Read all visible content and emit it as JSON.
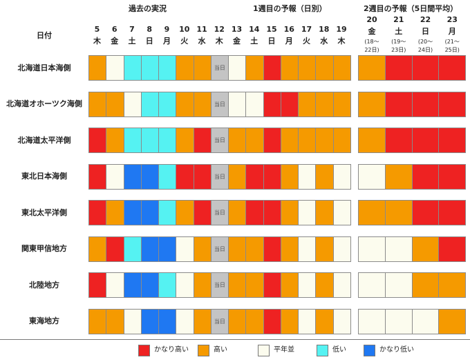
{
  "chart_data": {
    "type": "heatmap",
    "title_past": "過去の実況",
    "title_week1": "1週目の予報（日別）",
    "title_week2": "2週目の予報（5日間平均）",
    "region_header": "日付",
    "today_label": "当日",
    "days": [
      {
        "d": "5",
        "w": "木"
      },
      {
        "d": "6",
        "w": "金"
      },
      {
        "d": "7",
        "w": "土"
      },
      {
        "d": "8",
        "w": "日"
      },
      {
        "d": "9",
        "w": "月"
      },
      {
        "d": "10",
        "w": "火"
      },
      {
        "d": "11",
        "w": "水"
      },
      {
        "d": "12",
        "w": "木"
      },
      {
        "d": "13",
        "w": "金"
      },
      {
        "d": "14",
        "w": "土"
      },
      {
        "d": "15",
        "w": "日"
      },
      {
        "d": "16",
        "w": "月"
      },
      {
        "d": "17",
        "w": "火"
      },
      {
        "d": "18",
        "w": "水"
      },
      {
        "d": "19",
        "w": "木"
      }
    ],
    "week2": [
      {
        "d": "20",
        "w": "金",
        "r1": "(18～",
        "r2": "22日)"
      },
      {
        "d": "21",
        "w": "土",
        "r1": "(19～",
        "r2": "23日)"
      },
      {
        "d": "22",
        "w": "日",
        "r1": "(20～",
        "r2": "24日)"
      },
      {
        "d": "23",
        "w": "月",
        "r1": "(21～",
        "r2": "25日)"
      }
    ],
    "categories": [
      {
        "key": "vh",
        "label": "かなり高い",
        "color": "#ee2222"
      },
      {
        "key": "h",
        "label": "高い",
        "color": "#f59a00"
      },
      {
        "key": "n",
        "label": "平年並",
        "color": "#fcfcee"
      },
      {
        "key": "l",
        "label": "低い",
        "color": "#55f2f2"
      },
      {
        "key": "vl",
        "label": "かなり低い",
        "color": "#1f78f2"
      }
    ],
    "rows": [
      {
        "region": "北海道日本海側",
        "daily": [
          "h",
          "n",
          "l",
          "l",
          "l",
          "h",
          "h",
          "today",
          "n",
          "h",
          "vh",
          "h",
          "h",
          "h",
          "h"
        ],
        "week2": [
          "h",
          "vh",
          "vh",
          "vh"
        ]
      },
      {
        "region": "北海道オホーツク海側",
        "daily": [
          "h",
          "h",
          "n",
          "l",
          "l",
          "h",
          "h",
          "today",
          "n",
          "n",
          "vh",
          "vh",
          "h",
          "h",
          "h"
        ],
        "week2": [
          "h",
          "vh",
          "vh",
          "vh"
        ]
      },
      {
        "region": "北海道太平洋側",
        "daily": [
          "vh",
          "h",
          "l",
          "l",
          "l",
          "h",
          "vh",
          "today",
          "h",
          "h",
          "vh",
          "h",
          "h",
          "h",
          "h"
        ],
        "week2": [
          "h",
          "vh",
          "vh",
          "vh"
        ]
      },
      {
        "region": "東北日本海側",
        "daily": [
          "vh",
          "n",
          "vl",
          "vl",
          "l",
          "vh",
          "vh",
          "today",
          "h",
          "vh",
          "vh",
          "h",
          "n",
          "h",
          "n"
        ],
        "week2": [
          "n",
          "h",
          "vh",
          "vh"
        ]
      },
      {
        "region": "東北太平洋側",
        "daily": [
          "vh",
          "h",
          "vl",
          "vl",
          "l",
          "h",
          "vh",
          "today",
          "h",
          "vh",
          "vh",
          "h",
          "n",
          "h",
          "n"
        ],
        "week2": [
          "h",
          "h",
          "vh",
          "vh"
        ]
      },
      {
        "region": "関東甲信地方",
        "daily": [
          "h",
          "vh",
          "l",
          "vl",
          "vl",
          "n",
          "h",
          "today",
          "h",
          "h",
          "vh",
          "h",
          "n",
          "h",
          "n"
        ],
        "week2": [
          "n",
          "n",
          "h",
          "vh"
        ]
      },
      {
        "region": "北陸地方",
        "daily": [
          "vh",
          "n",
          "vl",
          "vl",
          "l",
          "n",
          "h",
          "today",
          "h",
          "h",
          "vh",
          "h",
          "n",
          "h",
          "n"
        ],
        "week2": [
          "n",
          "n",
          "h",
          "h"
        ]
      },
      {
        "region": "東海地方",
        "daily": [
          "h",
          "h",
          "n",
          "vl",
          "vl",
          "n",
          "h",
          "today",
          "h",
          "h",
          "vh",
          "h",
          "n",
          "h",
          "n"
        ],
        "week2": [
          "n",
          "n",
          "n",
          "h"
        ]
      }
    ]
  }
}
